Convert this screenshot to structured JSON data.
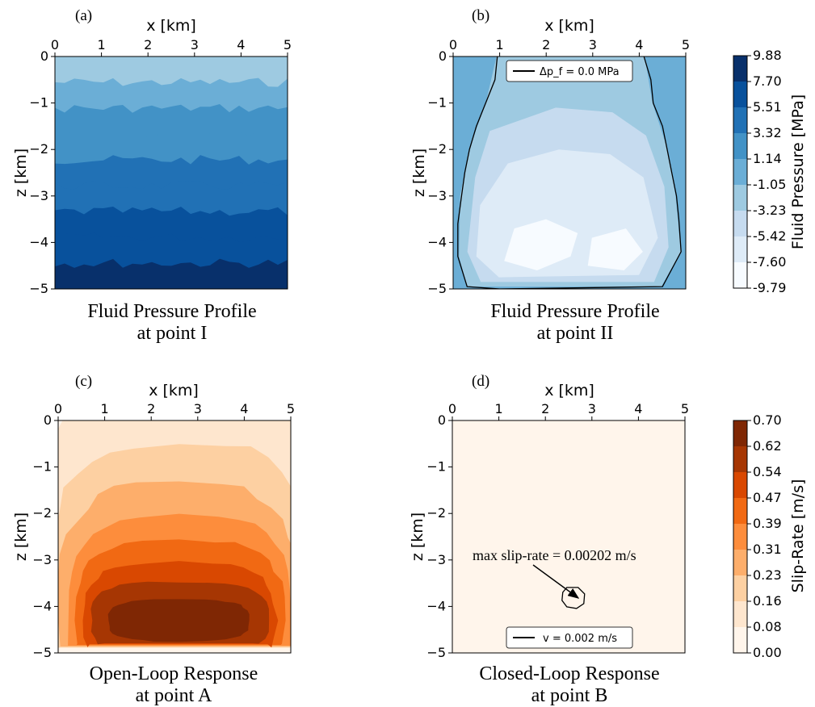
{
  "chart_data": [
    {
      "id": "a",
      "type": "heatmap",
      "panel_label": "(a)",
      "xlabel": "x [km]",
      "ylabel": "z [km]",
      "xlim": [
        0,
        5
      ],
      "ylim": [
        -5,
        0
      ],
      "xticks": [
        "0",
        "1",
        "2",
        "3",
        "4",
        "5"
      ],
      "yticks": [
        "0",
        "−1",
        "−2",
        "−3",
        "−4",
        "−5"
      ],
      "caption": [
        "Fluid Pressure Profile",
        "at point I"
      ],
      "colormap": "Blues",
      "field": "fluid pressure increasing with depth",
      "z_top_MPa": -1.05,
      "z_bottom_MPa": 7.7
    },
    {
      "id": "b",
      "type": "heatmap",
      "panel_label": "(b)",
      "xlabel": "x [km]",
      "ylabel": "z [km]",
      "xlim": [
        0,
        5
      ],
      "ylim": [
        -5,
        0
      ],
      "xticks": [
        "0",
        "1",
        "2",
        "3",
        "4",
        "5"
      ],
      "yticks": [
        "0",
        "−1",
        "−2",
        "−3",
        "−4",
        "−5"
      ],
      "caption": [
        "Fluid Pressure Profile",
        "at point II"
      ],
      "colormap": "Blues",
      "legend": "Δp_f = 0.0 MPa",
      "contour_level_MPa": 0.0,
      "center_min_MPa": -7.6
    },
    {
      "id": "c",
      "type": "heatmap",
      "panel_label": "(c)",
      "xlabel": "x [km]",
      "ylabel": "z [km]",
      "xlim": [
        0,
        5
      ],
      "ylim": [
        -5,
        0
      ],
      "xticks": [
        "0",
        "1",
        "2",
        "3",
        "4",
        "5"
      ],
      "yticks": [
        "0",
        "−1",
        "−2",
        "−3",
        "−4",
        "−5"
      ],
      "caption": [
        "Open-Loop Response",
        "at point A"
      ],
      "colormap": "Oranges",
      "max_slip_rate_region_center": [
        2.6,
        -4.3
      ],
      "max_slip_rate_m_s": 0.7
    },
    {
      "id": "d",
      "type": "heatmap",
      "panel_label": "(d)",
      "xlabel": "x [km]",
      "ylabel": "z [km]",
      "xlim": [
        0,
        5
      ],
      "ylim": [
        -5,
        0
      ],
      "xticks": [
        "0",
        "1",
        "2",
        "3",
        "4",
        "5"
      ],
      "yticks": [
        "0",
        "−1",
        "−2",
        "−3",
        "−4",
        "−5"
      ],
      "caption": [
        "Closed-Loop Response",
        "at point B"
      ],
      "colormap": "Oranges",
      "legend": "v = 0.002 m/s",
      "annotation": "max slip-rate = 0.00202 m/s",
      "contour_level_m_s": 0.002,
      "contour_center": [
        2.6,
        -3.8
      ]
    }
  ],
  "colorbars": {
    "pressure": {
      "label": "Fluid Pressure [MPa]",
      "ticks": [
        "9.88",
        "7.70",
        "5.51",
        "3.32",
        "1.14",
        "-1.05",
        "-3.23",
        "-5.42",
        "-7.60",
        "-9.79"
      ],
      "colors": [
        "#08306b",
        "#08519c",
        "#2171b5",
        "#4292c6",
        "#6baed6",
        "#9ecae1",
        "#c6dbef",
        "#deebf7",
        "#f7fbff"
      ]
    },
    "slip": {
      "label": "Slip-Rate [m/s]",
      "ticks": [
        "0.70",
        "0.62",
        "0.54",
        "0.47",
        "0.39",
        "0.31",
        "0.23",
        "0.16",
        "0.08",
        "0.00"
      ],
      "colors": [
        "#7f2704",
        "#a63603",
        "#d94801",
        "#f16913",
        "#fd8d3c",
        "#fdae6b",
        "#fdd0a2",
        "#fee6ce",
        "#fff5eb"
      ]
    }
  }
}
